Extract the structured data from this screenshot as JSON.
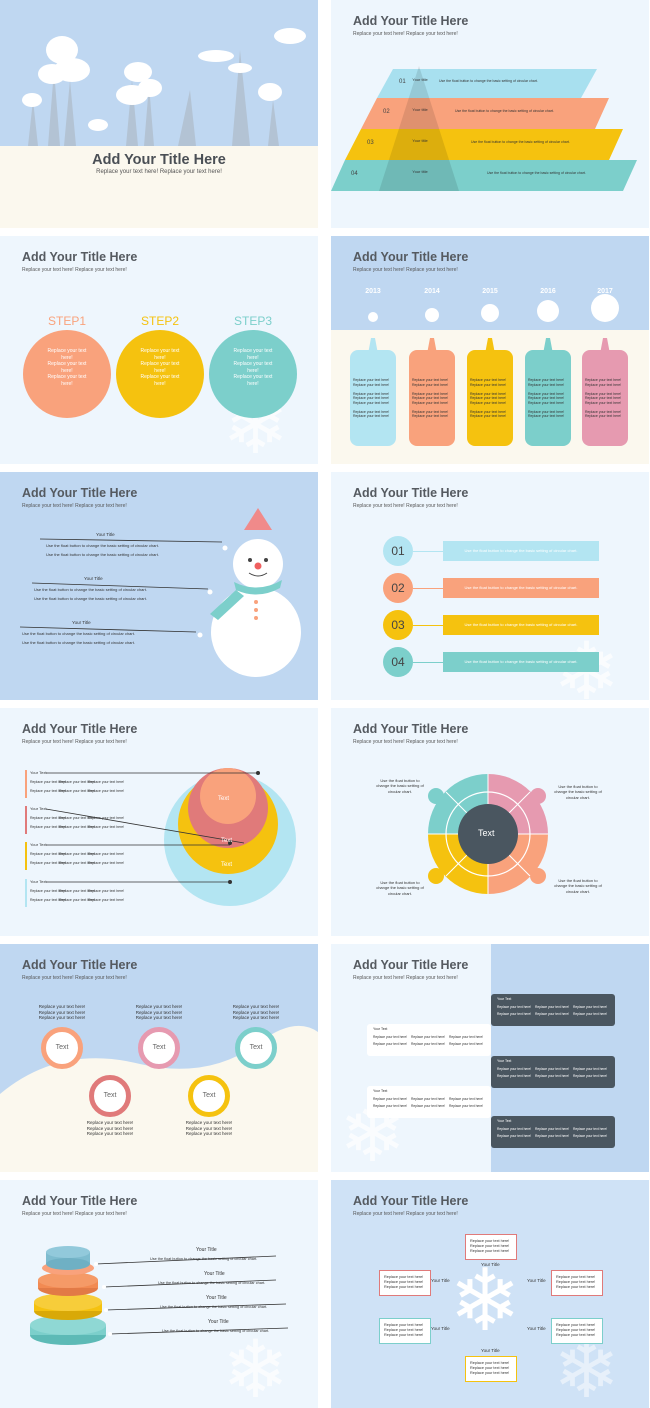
{
  "slide1": {
    "title": "Add Your Title Here",
    "subtitle": "Replace your text here!   Replace your text here!"
  },
  "slide2": {
    "title": "Add Your Title Here",
    "subtitle": "Replace your text here!   Replace your text here!",
    "rows": [
      {
        "num": "01",
        "label": "Your title",
        "desc": "Use the float button to change the basic setting of circular chart.",
        "color": "#a8e0ef"
      },
      {
        "num": "02",
        "label": "Your title",
        "desc": "Use the float button to change the basic setting of circular chart.",
        "color": "#f9a27c"
      },
      {
        "num": "03",
        "label": "Your title",
        "desc": "Use the float button to change the basic setting of circular chart.",
        "color": "#f5c20f"
      },
      {
        "num": "04",
        "label": "Your title",
        "desc": "Use the float button to change the basic setting of circular chart.",
        "color": "#7ccfcb"
      }
    ]
  },
  "slide3": {
    "title": "Add Your Title Here",
    "subtitle": "Replace your text here!   Replace your text here!",
    "steps": [
      {
        "label": "STEP1",
        "text": "Replace your text here!\nReplace your text here!\nReplace your text here!",
        "color": "#f9a27c"
      },
      {
        "label": "STEP2",
        "text": "Replace your text here!\nReplace your text here!\nReplace your text here!",
        "color": "#f5c20f"
      },
      {
        "label": "STEP3",
        "text": "Replace your text here!\nReplace your text here!\nReplace your text here!",
        "color": "#7ccfcb"
      }
    ]
  },
  "slide4": {
    "title": "Add Your Title Here",
    "subtitle": "Replace your text here!   Replace your text here!",
    "years": [
      "2013",
      "2014",
      "2015",
      "2016",
      "2017"
    ],
    "colors": [
      "#b3e5f2",
      "#f9a27c",
      "#f5c20f",
      "#7ccfcb",
      "#e69ab0"
    ],
    "body": "Replace your text here!\nReplace your text here!\n\nReplace your text here!\nReplace your text here!\nReplace your text here!\n\nReplace your text here!\nReplace your text here!"
  },
  "slide5": {
    "title": "Add Your Title Here",
    "subtitle": "Replace your text here!   Replace your text here!",
    "items": [
      {
        "title": "Your Title",
        "lines": [
          "Use the float button to change the basic setting of circular chart.",
          "Use the float button to change the basic setting of circular chart."
        ]
      },
      {
        "title": "Your Title",
        "lines": [
          "Use the float button to change the basic setting of circular chart.",
          "Use the float button to change the basic setting of circular chart."
        ]
      },
      {
        "title": "Your Title",
        "lines": [
          "Use the float button to change the basic setting of circular chart.",
          "Use the float button to change the basic setting of circular chart."
        ]
      }
    ]
  },
  "slide6": {
    "title": "Add Your Title Here",
    "subtitle": "Replace your text here!   Replace your text here!",
    "items": [
      {
        "num": "01",
        "text": "Use the float button to change the basic setting of circular chart.",
        "color": "#b3e5f2"
      },
      {
        "num": "02",
        "text": "Use the float button to change the basic setting of circular chart.",
        "color": "#f9a27c"
      },
      {
        "num": "03",
        "text": "Use the float button to change the basic setting of circular chart.",
        "color": "#f5c20f"
      },
      {
        "num": "04",
        "text": "Use the float button to change the basic setting of circular chart.",
        "color": "#7ccfcb"
      }
    ]
  },
  "slide7": {
    "title": "Add Your Title Here",
    "subtitle": "Replace your text here!   Replace your text here!",
    "items": [
      {
        "title": "Your Text",
        "color": "#f9a27c"
      },
      {
        "title": "Your Text",
        "color": "#e07a7a"
      },
      {
        "title": "Your Text",
        "color": "#f5c20f"
      },
      {
        "title": "Your Text",
        "color": "#b3e5f2"
      }
    ],
    "cell": "Replace your text here!",
    "circle_labels": [
      "Text",
      "Text",
      "Text"
    ]
  },
  "slide8": {
    "title": "Add Your Title Here",
    "subtitle": "Replace your text here!   Replace your text here!",
    "center": "Text",
    "corner_text": "Use the float button to change the basic setting of circular chart."
  },
  "slide9": {
    "title": "Add Your Title Here",
    "subtitle": "Replace your text here!   Replace your text here!",
    "circles": [
      {
        "label": "Text",
        "color": "#f9a27c"
      },
      {
        "label": "Text",
        "color": "#e69ab0"
      },
      {
        "label": "Text",
        "color": "#7ccfcb"
      },
      {
        "label": "Text",
        "color": "#e07a7a"
      },
      {
        "label": "Text",
        "color": "#f5c20f"
      }
    ],
    "text": "Replace your text here!\nReplace your text here!\nReplace your text here!"
  },
  "slide10": {
    "title": "Add Your Title Here",
    "subtitle": "Replace your text here!   Replace your text here!",
    "box_title": "Your Text",
    "cell": "Replace your text here!"
  },
  "slide11": {
    "title": "Add Your Title Here",
    "subtitle": "Replace your text here!   Replace your text here!",
    "items": [
      {
        "title": "Your Title",
        "text": "Use the float button to change the basic setting of circular chart."
      },
      {
        "title": "Your Title",
        "text": "Use the float button to change the basic setting of circular chart."
      },
      {
        "title": "Your Title",
        "text": "Use the float button to change the basic setting of circular chart."
      },
      {
        "title": "Your Title",
        "text": "Use the float button to change the basic setting of circular chart."
      }
    ]
  },
  "slide12": {
    "title": "Add Your Title Here",
    "subtitle": "Replace your text here!   Replace your text here!",
    "box_text": "Replace your text here!\nReplace your text here!\nReplace your text here!",
    "label": "Your Title"
  }
}
